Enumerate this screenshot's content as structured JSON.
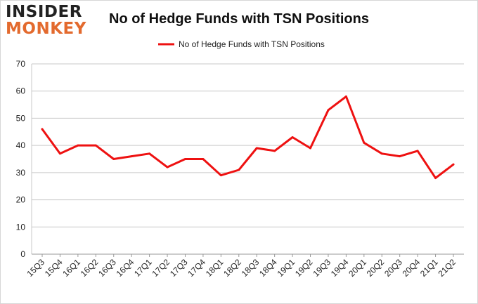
{
  "brand": {
    "line1": "INSIDER",
    "line2": "MONKEY"
  },
  "colors": {
    "series": "#ee1111",
    "grid": "#c9c9c9",
    "brand_accent": "#e36a2e"
  },
  "chart_data": {
    "type": "line",
    "title": "No of Hedge Funds with TSN Positions",
    "xlabel": "",
    "ylabel": "",
    "ylim": [
      0,
      70
    ],
    "yticks": [
      0,
      10,
      20,
      30,
      40,
      50,
      60,
      70
    ],
    "grid": true,
    "legend_position": "top-center",
    "categories": [
      "15Q3",
      "15Q4",
      "16Q1",
      "16Q2",
      "16Q3",
      "16Q4",
      "17Q1",
      "17Q2",
      "17Q3",
      "17Q4",
      "18Q1",
      "18Q2",
      "18Q3",
      "18Q4",
      "19Q1",
      "19Q2",
      "19Q3",
      "19Q4",
      "20Q1",
      "20Q2",
      "20Q3",
      "20Q4",
      "21Q1",
      "21Q2"
    ],
    "series": [
      {
        "name": "No of Hedge Funds with TSN Positions",
        "values": [
          46,
          37,
          40,
          40,
          35,
          36,
          37,
          32,
          35,
          35,
          29,
          31,
          39,
          38,
          43,
          39,
          53,
          58,
          41,
          37,
          36,
          38,
          28,
          33
        ]
      }
    ]
  }
}
